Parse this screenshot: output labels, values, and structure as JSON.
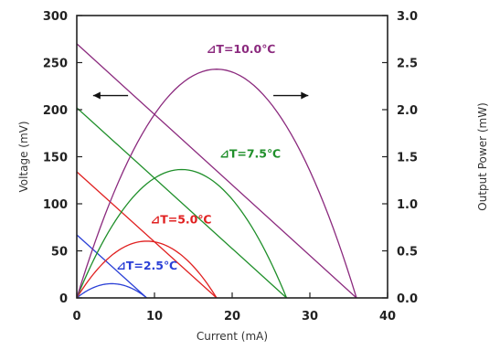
{
  "chart_data": {
    "type": "line",
    "xlabel": "Current  (mA)",
    "ylabel_left": "Voltage  (mV)",
    "ylabel_right": "Output Power  (mW)",
    "xlim": [
      0,
      40
    ],
    "ylim_left": [
      0,
      300
    ],
    "ylim_right": [
      0,
      3.0
    ],
    "x_ticks": [
      "0",
      "10",
      "20",
      "30",
      "40"
    ],
    "y_left_ticks": [
      "0",
      "50",
      "100",
      "150",
      "200",
      "250",
      "300"
    ],
    "y_right_ticks": [
      "0.0",
      "0.5",
      "1.0",
      "1.5",
      "2.0",
      "2.5",
      "3.0"
    ],
    "grid": false,
    "series": [
      {
        "label": "⊿T=2.5℃",
        "color": "#2a3fd6",
        "voltage": {
          "x": [
            0,
            9
          ],
          "y": [
            67,
            0
          ]
        },
        "power": {
          "x": [
            0,
            1.5,
            3,
            4.5,
            6,
            7.5,
            9
          ],
          "y": [
            0,
            0.084,
            0.134,
            0.151,
            0.134,
            0.084,
            0
          ]
        }
      },
      {
        "label": "⊿T=5.0℃",
        "color": "#e02020",
        "voltage": {
          "x": [
            0,
            18
          ],
          "y": [
            134,
            0
          ]
        },
        "power": {
          "x": [
            0,
            3,
            6,
            9,
            12,
            15,
            18
          ],
          "y": [
            0,
            0.335,
            0.536,
            0.603,
            0.536,
            0.335,
            0
          ]
        }
      },
      {
        "label": "⊿T=7.5℃",
        "color": "#1f8f2a",
        "voltage": {
          "x": [
            0,
            27
          ],
          "y": [
            202,
            0
          ]
        },
        "power": {
          "x": [
            0,
            4.5,
            9,
            13.5,
            18,
            22.5,
            27
          ],
          "y": [
            0,
            0.758,
            1.212,
            1.364,
            1.212,
            0.758,
            0
          ]
        }
      },
      {
        "label": "⊿T=10.0℃",
        "color": "#8b2a7e",
        "voltage": {
          "x": [
            0,
            36
          ],
          "y": [
            270,
            0
          ]
        },
        "power": {
          "x": [
            0,
            6,
            12,
            18,
            24,
            30,
            36
          ],
          "y": [
            0,
            1.35,
            2.16,
            2.43,
            2.16,
            1.35,
            0
          ]
        }
      }
    ],
    "arrows": [
      {
        "direction": "left",
        "meaning": "voltage axis"
      },
      {
        "direction": "right",
        "meaning": "power axis"
      }
    ]
  }
}
